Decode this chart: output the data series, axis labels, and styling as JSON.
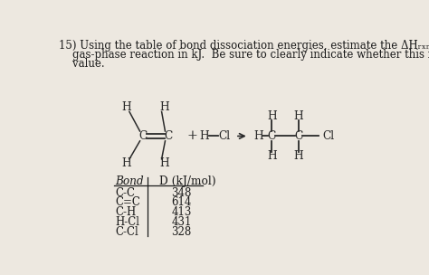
{
  "background_color": "#ede8e0",
  "title_line1": "15) Using the table of bond dissociation energies, estimate the ΔHᵣₓₙ for the following",
  "title_line2": "    gas-phase reaction in kJ.  Be sure to clearly indicate whether this is a negative or positive",
  "title_line3": "    value.",
  "table_data": [
    [
      "C-C",
      "348"
    ],
    [
      "C=C",
      "614"
    ],
    [
      "C-H",
      "413"
    ],
    [
      "H-Cl",
      "431"
    ],
    [
      "C-Cl",
      "328"
    ]
  ],
  "font_size": 8.5,
  "text_color": "#1a1a1a",
  "chem_color": "#2a2a2a"
}
